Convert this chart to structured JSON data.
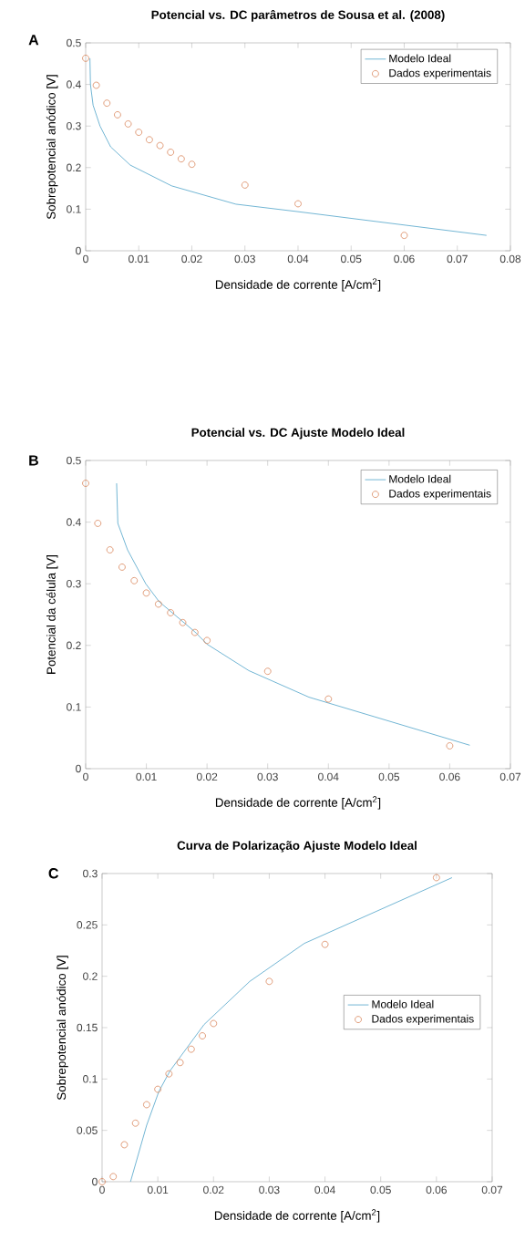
{
  "chart_data": [
    {
      "type": "line",
      "title": "Potencial vs. DC parâmetros de Sousa et al. (2008)",
      "xlabel": "Densidade de corrente [A/cm$^{2}$]",
      "ylabel": "Sobrepotencial anódico [V]",
      "annotations": [
        "A"
      ],
      "legend": "top right",
      "xlim": [
        0,
        0.08
      ],
      "ylim": [
        0,
        0.5
      ],
      "xticks": [
        0,
        0.01,
        0.02,
        0.03,
        0.04,
        0.05,
        0.06,
        0.07,
        0.08
      ],
      "yticks": [
        0,
        0.1,
        0.2,
        0.3,
        0.4,
        0.5
      ],
      "series": [
        {
          "name": "Modelo Ideal",
          "color": "#4fa3c9",
          "x": [
            0.0008,
            0.0009,
            0.0014,
            0.0027,
            0.0047,
            0.0084,
            0.0162,
            0.0283,
            0.04,
            0.0755
          ],
          "values": [
            0.463,
            0.4,
            0.35,
            0.3,
            0.25,
            0.206,
            0.156,
            0.112,
            0.094,
            0.037
          ]
        },
        {
          "name": "Dados experimentais",
          "type": "scatter",
          "marker": "circle",
          "color": "#d9855b",
          "x": [
            0,
            0.002,
            0.004,
            0.006,
            0.008,
            0.01,
            0.012,
            0.014,
            0.016,
            0.018,
            0.02,
            0.03,
            0.04,
            0.06
          ],
          "values": [
            0.463,
            0.398,
            0.355,
            0.327,
            0.305,
            0.285,
            0.267,
            0.253,
            0.237,
            0.221,
            0.208,
            0.158,
            0.113,
            0.037
          ]
        }
      ]
    },
    {
      "type": "line",
      "title": "Potencial vs. DC Ajuste Modelo Ideal",
      "xlabel": "Densidade de corrente [A/cm$^{2}$]",
      "ylabel": "Potencial da célula [V]",
      "annotations": [
        "B"
      ],
      "legend": "top right",
      "xlim": [
        0,
        0.07
      ],
      "ylim": [
        0,
        0.5
      ],
      "xticks": [
        0,
        0.01,
        0.02,
        0.03,
        0.04,
        0.05,
        0.06,
        0.07
      ],
      "yticks": [
        0,
        0.1,
        0.2,
        0.3,
        0.4,
        0.5
      ],
      "series": [
        {
          "name": "Modelo Ideal",
          "color": "#4fa3c9",
          "x": [
            0.0051,
            0.0053,
            0.0069,
            0.0099,
            0.0121,
            0.018,
            0.02,
            0.0269,
            0.0368,
            0.0633
          ],
          "values": [
            0.463,
            0.398,
            0.355,
            0.3,
            0.271,
            0.222,
            0.202,
            0.159,
            0.116,
            0.038
          ]
        },
        {
          "name": "Dados experimentais",
          "type": "scatter",
          "marker": "circle",
          "color": "#d9855b",
          "x": [
            0,
            0.002,
            0.004,
            0.006,
            0.008,
            0.01,
            0.012,
            0.014,
            0.016,
            0.018,
            0.02,
            0.03,
            0.04,
            0.06
          ],
          "values": [
            0.463,
            0.398,
            0.355,
            0.327,
            0.305,
            0.285,
            0.267,
            0.253,
            0.237,
            0.221,
            0.208,
            0.158,
            0.113,
            0.037
          ]
        }
      ]
    },
    {
      "type": "line",
      "title": "Curva de Polarização Ajuste Modelo Ideal",
      "xlabel": "Densidade de corrente [A/cm$^{2}$]",
      "ylabel": "Sobrepotencial anódico [V]",
      "annotations": [
        "C"
      ],
      "legend": "right",
      "xlim": [
        0,
        0.07
      ],
      "ylim": [
        0,
        0.3
      ],
      "xticks": [
        0,
        0.01,
        0.02,
        0.03,
        0.04,
        0.05,
        0.06,
        0.07
      ],
      "yticks": [
        0,
        0.05,
        0.1,
        0.15,
        0.2,
        0.25,
        0.3
      ],
      "series": [
        {
          "name": "Modelo Ideal",
          "color": "#4fa3c9",
          "x": [
            0.0051,
            0.008,
            0.0102,
            0.0122,
            0.0183,
            0.0265,
            0.0363,
            0.0628
          ],
          "values": [
            0,
            0.055,
            0.088,
            0.108,
            0.153,
            0.195,
            0.232,
            0.296
          ]
        },
        {
          "name": "Dados experimentais",
          "type": "scatter",
          "marker": "circle",
          "color": "#d9855b",
          "x": [
            0,
            0.002,
            0.004,
            0.006,
            0.008,
            0.01,
            0.012,
            0.014,
            0.016,
            0.018,
            0.02,
            0.03,
            0.04,
            0.06
          ],
          "values": [
            0,
            0.005,
            0.036,
            0.057,
            0.075,
            0.09,
            0.105,
            0.116,
            0.129,
            0.142,
            0.154,
            0.195,
            0.231,
            0.296
          ]
        }
      ]
    }
  ]
}
